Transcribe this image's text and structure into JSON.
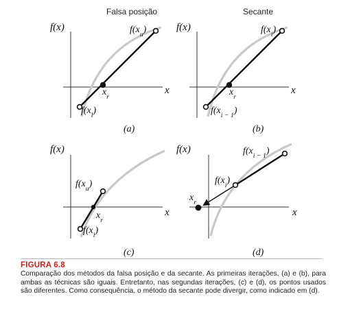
{
  "panels": [
    {
      "id": "a",
      "title": "Falsa posição",
      "label": "(a)",
      "y_axis_label": "f(x)",
      "x_axis_label": "x",
      "point_labels": {
        "upper": "f(x_u)",
        "lower": "f(x_l)",
        "root": "x_r"
      }
    },
    {
      "id": "b",
      "title": "Secante",
      "label": "(b)",
      "y_axis_label": "f(x)",
      "x_axis_label": "x",
      "point_labels": {
        "upper": "f(x_i)",
        "lower": "f(x_i − 1)",
        "root": "x_r"
      }
    },
    {
      "id": "c",
      "title": "",
      "label": "(c)",
      "y_axis_label": "f(x)",
      "x_axis_label": "x",
      "point_labels": {
        "upper": "f(x_u)",
        "lower": "f(x_l)",
        "root": "x_r"
      }
    },
    {
      "id": "d",
      "title": "",
      "label": "(d)",
      "y_axis_label": "f(x)",
      "x_axis_label": "x",
      "point_labels": {
        "upper": "f(x_i − 1)",
        "lower": "f(x_i)",
        "root": "x_r"
      }
    }
  ],
  "caption": {
    "title": "FIGURA 6.8",
    "text": "Comparação dos métodos da falsa posição e da secante. As primeiras iterações, (a) e (b), para ambas as técnicas são iguais. Entretanto, nas segundas iterações, (c) e (d), os pontos usados são diferentes. Como consequência, o método da secante pode divergir, como indicado em (d)."
  },
  "colors": {
    "curve": "#c8c8c8",
    "line": "#111111",
    "caption_title": "#c3261b"
  }
}
